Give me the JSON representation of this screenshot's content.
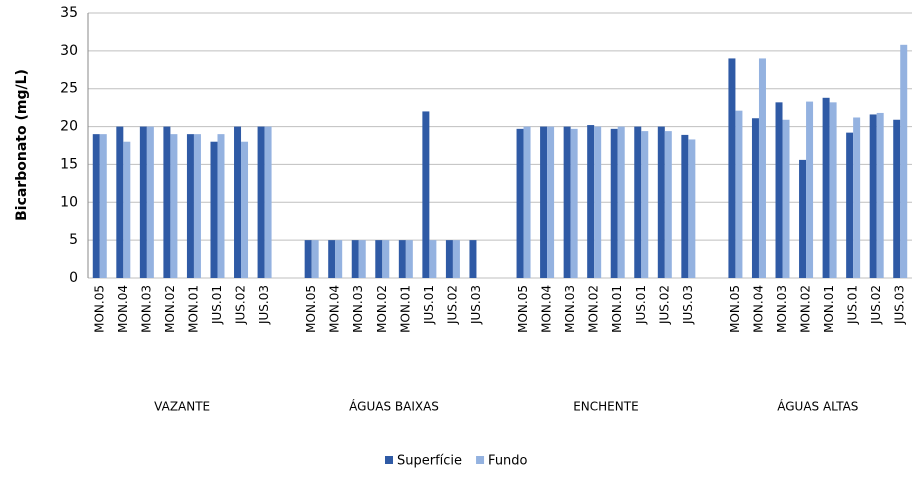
{
  "chart_data": {
    "type": "bar",
    "y_label": "Bicarbonato (mg/L)",
    "groups": [
      "VAZANTE",
      "ÁGUAS BAIXAS",
      "ENCHENTE",
      "ÁGUAS ALTAS"
    ],
    "categories": [
      "MON.05",
      "MON.04",
      "MON.03",
      "MON.02",
      "MON.01",
      "JUS.01",
      "JUS.02",
      "JUS.03",
      "MON.05",
      "MON.04",
      "MON.03",
      "MON.02",
      "MON.01",
      "JUS.01",
      "JUS.02",
      "JUS.03",
      "MON.05",
      "MON.04",
      "MON.03",
      "MON.02",
      "MON.01",
      "JUS.01",
      "JUS.02",
      "JUS.03",
      "MON.05",
      "MON.04",
      "MON.03",
      "MON.02",
      "MON.01",
      "JUS.01",
      "JUS.02",
      "JUS.03"
    ],
    "series": [
      {
        "name": "Superfície",
        "color": "#2f5aa5",
        "values": [
          19,
          20,
          20,
          20,
          19,
          18,
          20,
          20,
          5,
          5,
          5,
          5,
          5,
          22,
          5,
          5,
          19.7,
          20,
          20,
          20.2,
          19.7,
          20,
          20,
          18.9,
          29,
          21.1,
          23.2,
          15.6,
          23.8,
          19.2,
          21.6,
          20.9
        ]
      },
      {
        "name": "Fundo",
        "color": "#94b2e0",
        "values": [
          19,
          18,
          20,
          19,
          19,
          19,
          18,
          20,
          5,
          5,
          5,
          5,
          5,
          5,
          5,
          null,
          20,
          20,
          19.7,
          20,
          20,
          19.4,
          19.4,
          18.3,
          22.1,
          29,
          20.9,
          23.3,
          23.2,
          21.2,
          21.8,
          30.8
        ]
      }
    ],
    "ylim": [
      0,
      35
    ],
    "yticks": [
      0,
      5,
      10,
      15,
      20,
      25,
      30,
      35
    ],
    "grid": true,
    "legend": "bottom"
  }
}
